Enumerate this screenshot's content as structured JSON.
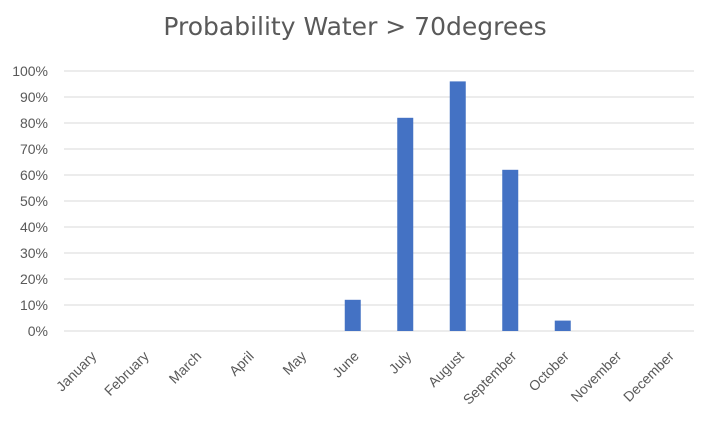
{
  "chart_data": {
    "type": "bar",
    "title": "Probability Water > 70degrees",
    "xlabel": "",
    "ylabel": "",
    "categories": [
      "January",
      "February",
      "March",
      "April",
      "May",
      "June",
      "July",
      "August",
      "September",
      "October",
      "November",
      "December"
    ],
    "values": [
      0,
      0,
      0,
      0,
      0,
      0.12,
      0.82,
      0.96,
      0.62,
      0.04,
      0,
      0
    ],
    "ylim": [
      0,
      1
    ],
    "yticks": [
      0,
      0.1,
      0.2,
      0.3,
      0.4,
      0.5,
      0.6,
      0.7,
      0.8,
      0.9,
      1.0
    ],
    "ytick_labels": [
      "0%",
      "10%",
      "20%",
      "30%",
      "40%",
      "50%",
      "60%",
      "70%",
      "80%",
      "90%",
      "100%"
    ],
    "grid": true,
    "legend": "none",
    "bar_color": "#4472C4",
    "grid_color": "#d9d9d9"
  }
}
